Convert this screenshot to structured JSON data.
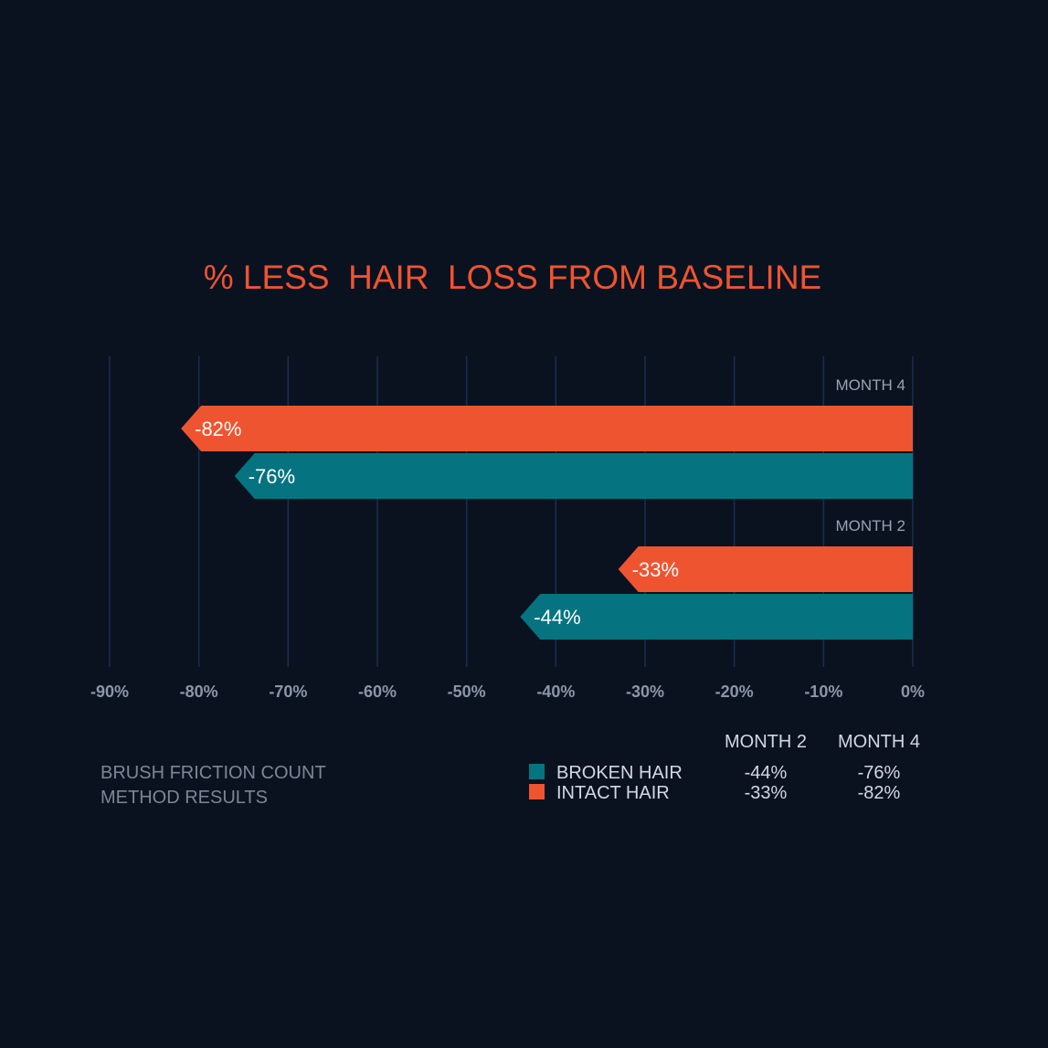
{
  "colors": {
    "background": "#0a1220",
    "title": "#ef5430",
    "intact": "#ef5430",
    "broken": "#057480",
    "grid": "#1c2d52",
    "tick": "#8c96a8",
    "group_label": "#98a2b3",
    "bar_label": "#ffffff",
    "legend_text": "#d3d8e0",
    "footnote": "#7d8696"
  },
  "chart_data": {
    "type": "bar",
    "orientation": "horizontal",
    "title": "% LESS  HAIR  LOSS FROM BASELINE",
    "xlim": [
      -90,
      0
    ],
    "xticks": [
      -90,
      -80,
      -70,
      -60,
      -50,
      -40,
      -30,
      -20,
      -10,
      0
    ],
    "xtick_labels": [
      "-90%",
      "-80%",
      "-70%",
      "-60%",
      "-50%",
      "-40%",
      "-30%",
      "-20%",
      "-10%",
      "0%"
    ],
    "grid": true,
    "groups": [
      {
        "label": "MONTH 4",
        "bars": [
          {
            "series": "INTACT HAIR",
            "value": -82,
            "label": "-82%"
          },
          {
            "series": "BROKEN HAIR",
            "value": -76,
            "label": "-76%"
          }
        ]
      },
      {
        "label": "MONTH 2",
        "bars": [
          {
            "series": "INTACT HAIR",
            "value": -33,
            "label": "-33%"
          },
          {
            "series": "BROKEN HAIR",
            "value": -44,
            "label": "-44%"
          }
        ]
      }
    ],
    "legend": {
      "placement": "bottom-right",
      "columns": [
        "MONTH 2",
        "MONTH 4"
      ],
      "rows": [
        {
          "name": "BROKEN HAIR",
          "color_key": "broken",
          "values": [
            "-44%",
            "-76%"
          ]
        },
        {
          "name": "INTACT HAIR",
          "color_key": "intact",
          "values": [
            "-33%",
            "-82%"
          ]
        }
      ]
    },
    "footnote": [
      "BRUSH FRICTION COUNT",
      "METHOD RESULTS"
    ]
  }
}
